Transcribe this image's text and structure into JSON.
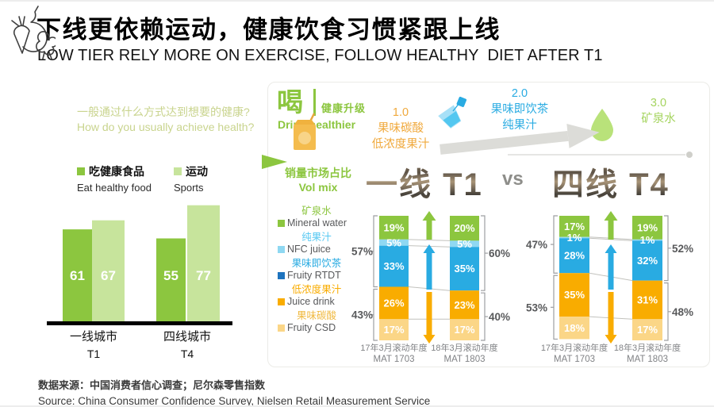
{
  "title": {
    "zh": "下线更依赖运动，健康饮食习惯紧跟上线",
    "en": "LOW TIER RELY MORE ON EXERCISE, FOLLOW HEALTHY  DIET AFTER T1"
  },
  "left_panel": {
    "question_zh": "一般通过什么方式达到想要的健康?",
    "question_en": "How do you usually achieve health?",
    "legend": [
      {
        "zh": "吃健康食品",
        "en": "Eat healthy food",
        "color": "#8cc63f"
      },
      {
        "zh": "运动",
        "en": "Sports",
        "color": "#c7e49c"
      }
    ]
  },
  "drink": {
    "tag_zh": "喝",
    "subtitle_zh": "健康升级",
    "subtitle_en": "Drink healthier",
    "stages": [
      {
        "num": "1.0",
        "line1": "果味碳酸",
        "line2": "低浓度果汁",
        "color": "#f0a93c",
        "icon": "juice-box-icon"
      },
      {
        "num": "2.0",
        "line1": "果味即饮茶",
        "line2": "纯果汁",
        "color": "#29abe2",
        "icon": "tea-glass-icon"
      },
      {
        "num": "3.0",
        "line1": "矿泉水",
        "line2": "",
        "color": "#a5d45f",
        "icon": "water-drop-icon"
      }
    ]
  },
  "volmix": {
    "zh": "销量市场占比",
    "en": "Vol mix",
    "t1_label": "一线 T1",
    "vs_label": "vs",
    "t4_label": "四线 T4"
  },
  "legend_beverages": [
    {
      "zh": "矿泉水",
      "en": "Mineral water",
      "square": "#8cc63f",
      "text": "#8cc63f"
    },
    {
      "zh": "纯果汁",
      "en": "NFC juice",
      "square": "#8fd8f2",
      "text": "#56c8f2"
    },
    {
      "zh": "果味即饮茶",
      "en": "Fruity RTDT",
      "square": "#1e73be",
      "text": "#29abe2"
    },
    {
      "zh": "低浓度果汁",
      "en": "Juice drink",
      "square": "#f9ac00",
      "text": "#f9ac00"
    },
    {
      "zh": "果味碳酸",
      "en": "Fruity CSD",
      "square": "#fbd687",
      "text": "#f0b93f"
    }
  ],
  "chart_data": [
    {
      "id": "achieve_health",
      "type": "bar",
      "title": "一般通过什么方式达到想要的健康? How do you usually achieve health?",
      "categories": [
        "一线城市",
        "四线城市"
      ],
      "category_subs": [
        "T1",
        "T4"
      ],
      "series": [
        {
          "name": "吃健康食品 Eat healthy food",
          "color": "#8cc63f",
          "values": [
            61,
            55
          ]
        },
        {
          "name": "运动 Sports",
          "color": "#c7e49c",
          "values": [
            67,
            77
          ]
        }
      ],
      "ylim": [
        0,
        100
      ]
    },
    {
      "id": "volmix_t1",
      "type": "stacked-bar",
      "title": "一线 T1 销量市场占比 Vol mix",
      "categories": [
        "17年3月滚动年度",
        "18年3月滚动年度"
      ],
      "category_subs": [
        "MAT 1703",
        "MAT 1803"
      ],
      "segment_names": [
        "矿泉水 Mineral water",
        "纯果汁 NFC juice",
        "果味即饮茶 Fruity RTDT",
        "低浓度果汁 Juice drink",
        "果味碳酸 Fruity CSD"
      ],
      "segment_colors": [
        "#8cc63f",
        "#8fd8f2",
        "#29abe2",
        "#f9ac00",
        "#fbd687"
      ],
      "values": [
        [
          19,
          5,
          33,
          26,
          17
        ],
        [
          20,
          5,
          35,
          23,
          17
        ]
      ],
      "group_left": [
        "57%",
        "43%"
      ],
      "group_right": [
        "60%",
        "40%"
      ],
      "trend_arrows": [
        {
          "direction": "up",
          "color": "#8cc63f"
        },
        {
          "direction": "up",
          "color": "#29abe2"
        },
        {
          "direction": "down",
          "color": "#f9ac00"
        }
      ],
      "unit": "%"
    },
    {
      "id": "volmix_t4",
      "type": "stacked-bar",
      "title": "四线 T4 销量市场占比 Vol mix",
      "categories": [
        "17年3月滚动年度",
        "18年3月滚动年度"
      ],
      "category_subs": [
        "MAT 1703",
        "MAT 1803"
      ],
      "segment_names": [
        "矿泉水 Mineral water",
        "纯果汁 NFC juice",
        "果味即饮茶 Fruity RTDT",
        "低浓度果汁 Juice drink",
        "果味碳酸 Fruity CSD"
      ],
      "segment_colors": [
        "#8cc63f",
        "#8fd8f2",
        "#29abe2",
        "#f9ac00",
        "#fbd687"
      ],
      "values": [
        [
          17,
          1,
          28,
          35,
          18
        ],
        [
          19,
          1,
          32,
          31,
          17
        ]
      ],
      "group_left": [
        "47%",
        "53%"
      ],
      "group_right": [
        "52%",
        "48%"
      ],
      "trend_arrows": [
        {
          "direction": "up",
          "color": "#8cc63f"
        },
        {
          "direction": "up",
          "color": "#29abe2"
        },
        {
          "direction": "down",
          "color": "#f9ac00"
        }
      ],
      "unit": "%"
    }
  ],
  "source": {
    "zh": "数据来源：中国消费者信心调查；尼尔森零售指数",
    "en": "Source: China Consumer Confidence Survey, Nielsen Retail Measurement Service"
  },
  "colors": {
    "green": "#8cc63f",
    "light_green": "#c7e49c",
    "pale_green_text": "#c9d48e",
    "blue": "#29abe2",
    "light_blue": "#8fd8f2",
    "orange": "#f9ac00",
    "pale_yellow": "#fbd687",
    "gray_arrow": "#dcdcd8",
    "label_gray": "#58595b"
  }
}
